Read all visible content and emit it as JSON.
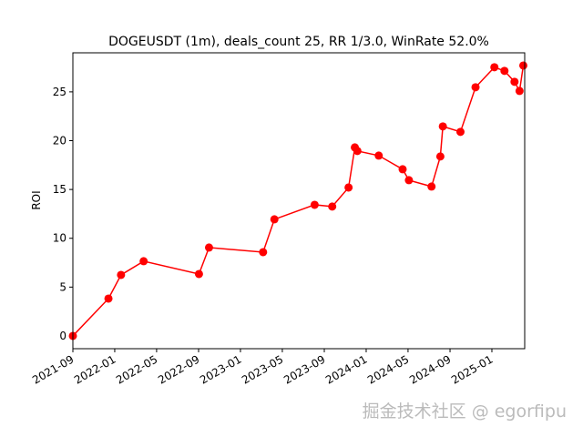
{
  "chart_data": {
    "type": "line",
    "title": "DOGEUSDT (1m), deals_count 25, RR 1/3.0, WinRate 52.0%",
    "y_label": "ROI",
    "watermark": "掘金技术社区 @ egorfipu",
    "x": [
      2021.667,
      2021.95,
      2022.05,
      2022.23,
      2022.67,
      2022.75,
      2023.18,
      2023.27,
      2023.59,
      2023.73,
      2023.86,
      2023.91,
      2023.93,
      2024.1,
      2024.29,
      2024.34,
      2024.52,
      2024.59,
      2024.61,
      2024.75,
      2024.87,
      2025.02,
      2025.1,
      2025.18,
      2025.22,
      2025.25
    ],
    "series": [
      {
        "name": "ROI",
        "color": "#ff0000",
        "values": [
          0,
          3.82,
          6.25,
          7.65,
          6.34,
          9.05,
          8.58,
          11.94,
          13.43,
          13.25,
          15.2,
          19.31,
          18.94,
          18.47,
          17.07,
          15.95,
          15.3,
          18.38,
          21.46,
          20.9,
          25.47,
          27.52,
          27.15,
          26.03,
          25.09,
          27.7
        ]
      }
    ],
    "xlim": [
      2021.667,
      2025.261
    ],
    "ylim": [
      -1.31,
      29.0
    ],
    "xticks": [
      {
        "value": 2021.667,
        "label": "2021-09"
      },
      {
        "value": 2022.0,
        "label": "2022-01"
      },
      {
        "value": 2022.333,
        "label": "2022-05"
      },
      {
        "value": 2022.667,
        "label": "2022-09"
      },
      {
        "value": 2023.0,
        "label": "2023-01"
      },
      {
        "value": 2023.333,
        "label": "2023-05"
      },
      {
        "value": 2023.667,
        "label": "2023-09"
      },
      {
        "value": 2024.0,
        "label": "2024-01"
      },
      {
        "value": 2024.333,
        "label": "2024-05"
      },
      {
        "value": 2024.667,
        "label": "2024-09"
      },
      {
        "value": 2025.0,
        "label": "2025-01"
      }
    ],
    "yticks": [
      0,
      5,
      10,
      15,
      20,
      25
    ],
    "grid": false
  }
}
